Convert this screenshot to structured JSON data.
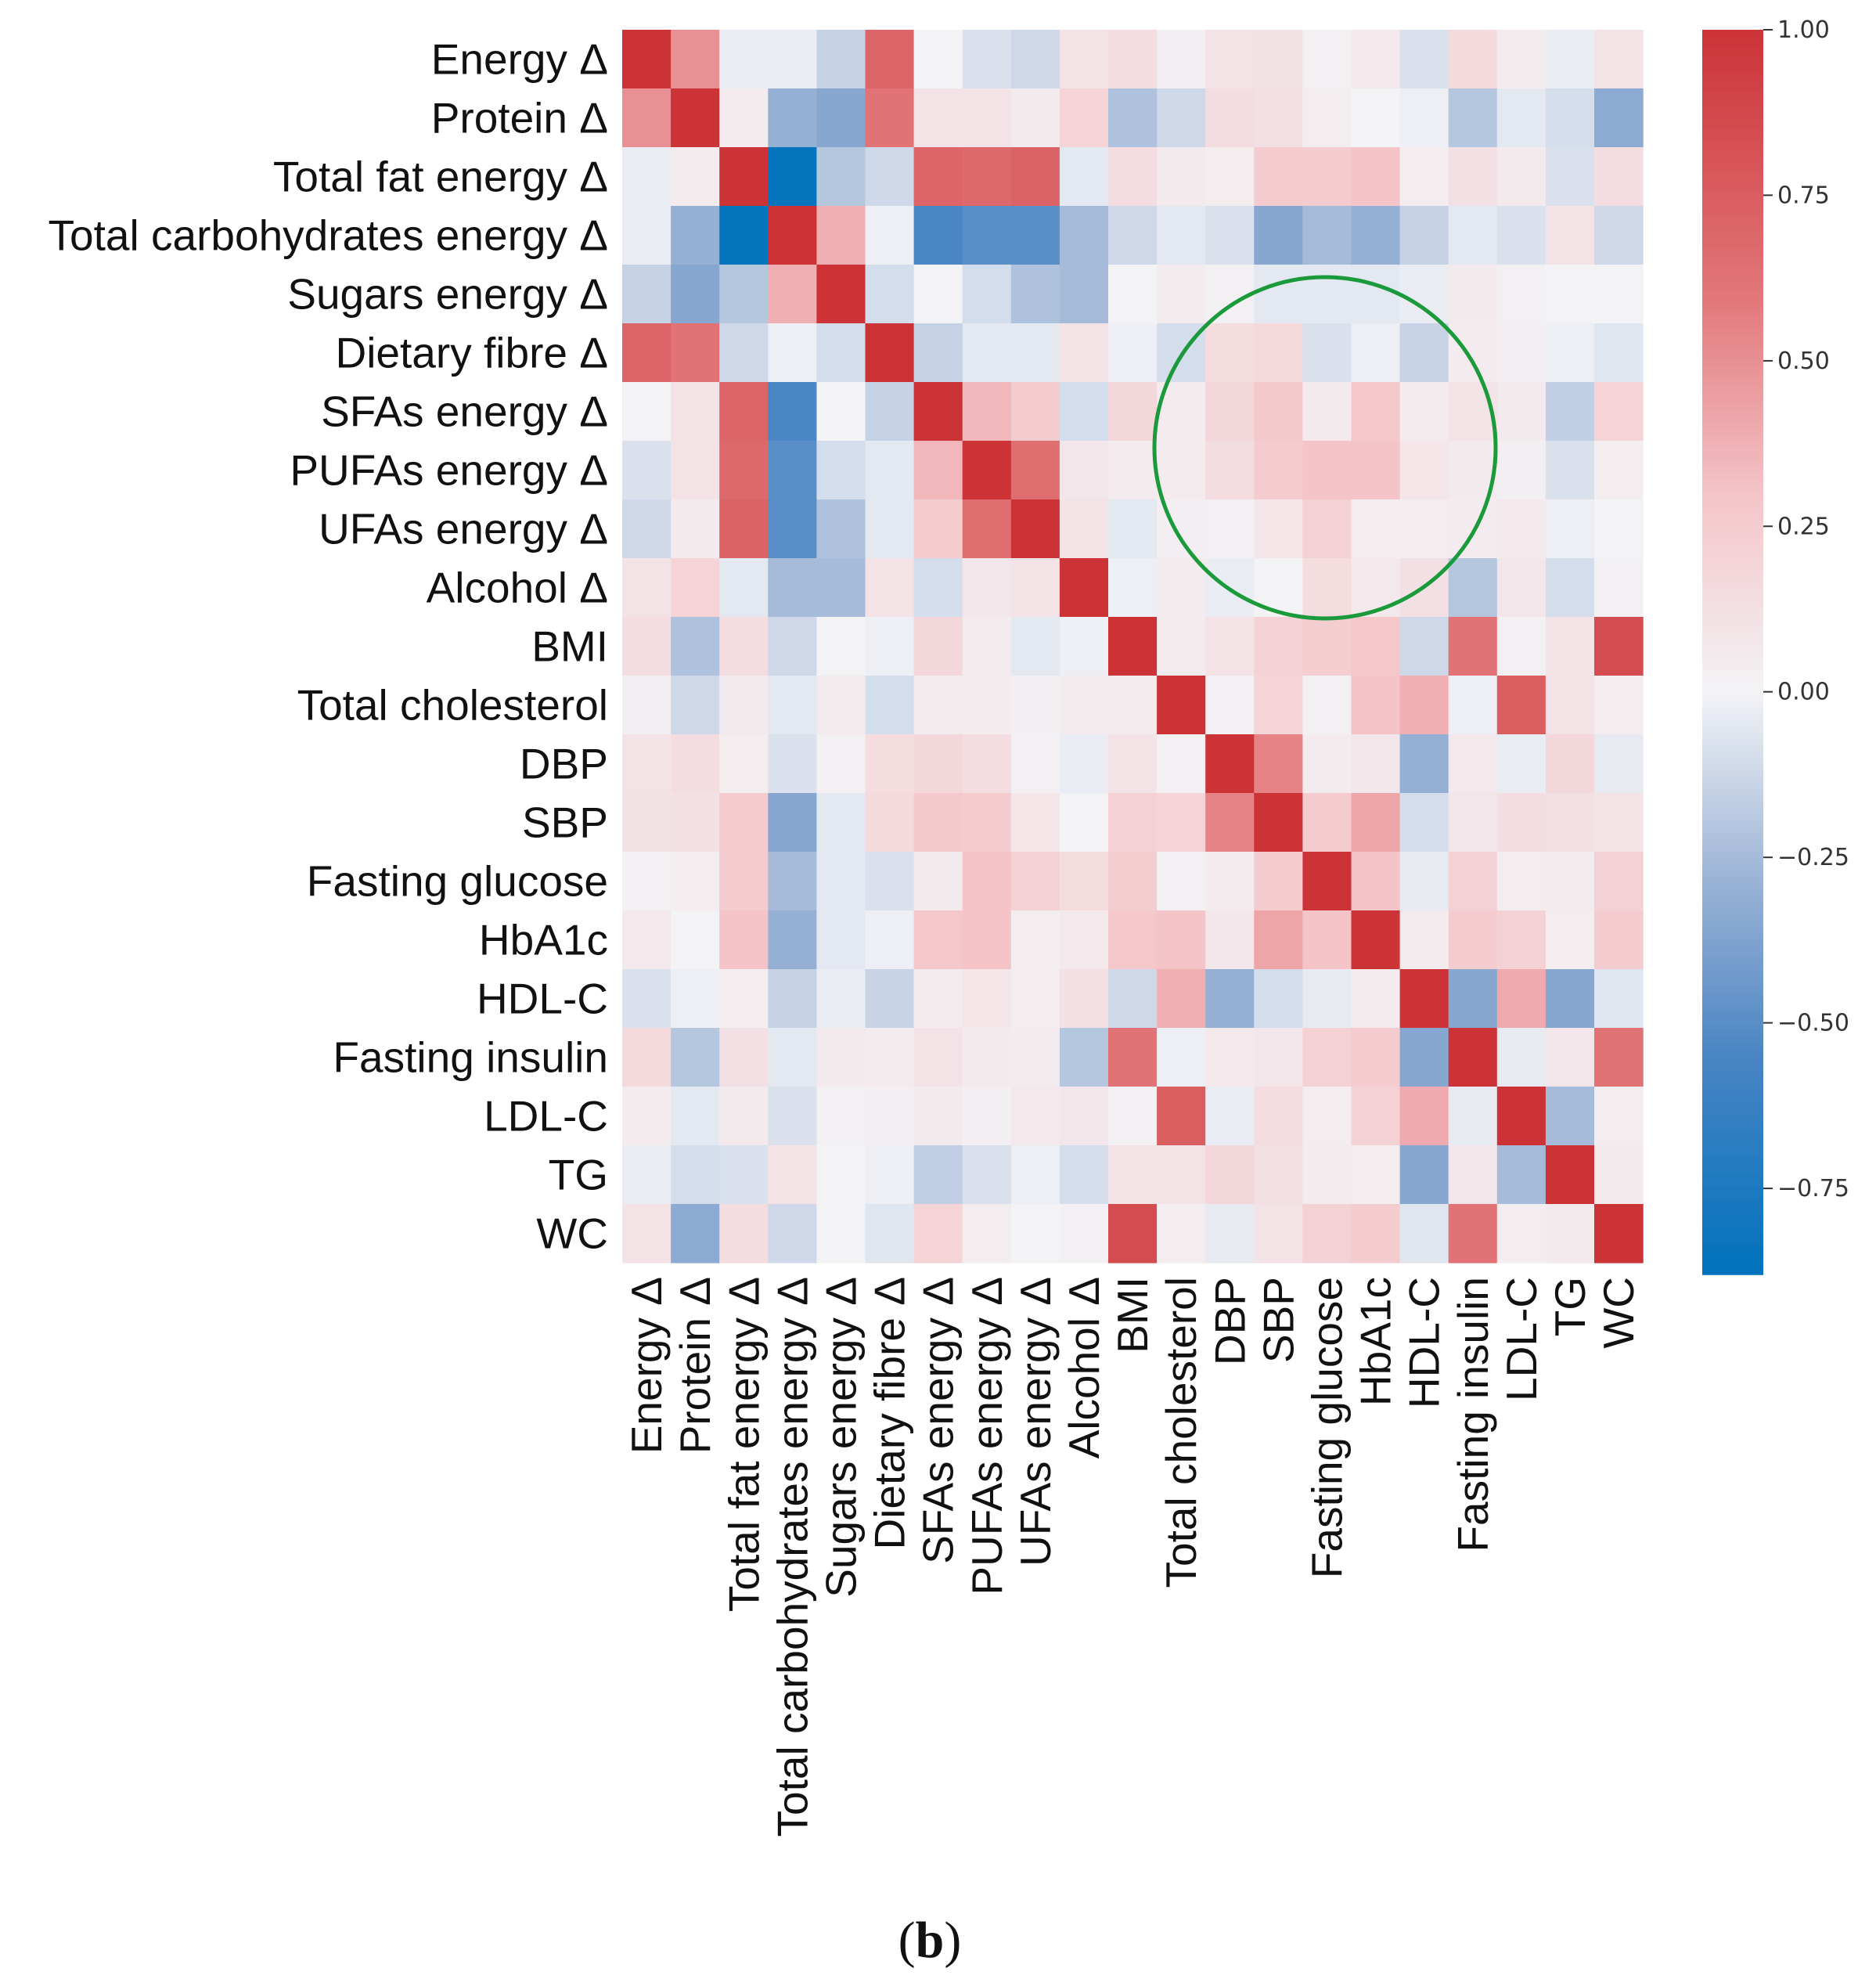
{
  "chart_data": {
    "type": "heatmap",
    "title": "",
    "caption": {
      "open": "(",
      "letter": "b",
      "close": ")"
    },
    "labels": [
      "Energy Δ",
      "Protein Δ",
      "Total fat energy Δ",
      "Total carbohydrates energy Δ",
      "Sugars energy Δ",
      "Dietary fibre Δ",
      "SFAs energy Δ",
      "PUFAs energy Δ",
      "UFAs energy Δ",
      "Alcohol Δ",
      "BMI",
      "Total cholesterol",
      "DBP",
      "SBP",
      "Fasting glucose",
      "HbA1c",
      "HDL-C",
      "Fasting insulin",
      "LDL-C",
      "TG",
      "WC"
    ],
    "matrix": [
      [
        1.0,
        0.5,
        -0.03,
        -0.03,
        -0.15,
        0.7,
        0.0,
        -0.08,
        -0.12,
        0.1,
        0.14,
        0.03,
        0.1,
        0.11,
        0.02,
        0.07,
        -0.08,
        0.16,
        0.05,
        -0.03,
        0.1
      ],
      [
        0.5,
        1.0,
        0.05,
        -0.3,
        -0.35,
        0.62,
        0.1,
        0.1,
        0.06,
        0.2,
        -0.22,
        -0.12,
        0.14,
        0.12,
        0.04,
        0.0,
        -0.02,
        -0.2,
        -0.05,
        -0.1,
        -0.33
      ],
      [
        -0.03,
        0.05,
        1.0,
        -0.85,
        -0.2,
        -0.12,
        0.7,
        0.68,
        0.72,
        -0.05,
        0.14,
        0.06,
        0.04,
        0.25,
        0.25,
        0.3,
        0.04,
        0.12,
        0.06,
        -0.08,
        0.14
      ],
      [
        -0.03,
        -0.3,
        -0.85,
        1.0,
        0.38,
        -0.02,
        -0.55,
        -0.5,
        -0.5,
        -0.25,
        -0.12,
        -0.05,
        -0.08,
        -0.35,
        -0.25,
        -0.3,
        -0.15,
        -0.05,
        -0.08,
        0.1,
        -0.12
      ],
      [
        -0.15,
        -0.35,
        -0.2,
        0.38,
        1.0,
        -0.1,
        0.0,
        -0.1,
        -0.22,
        -0.25,
        0.0,
        0.05,
        0.02,
        -0.05,
        -0.05,
        -0.05,
        -0.03,
        0.06,
        0.02,
        0.0,
        0.0
      ],
      [
        0.7,
        0.62,
        -0.12,
        -0.02,
        -0.1,
        1.0,
        -0.15,
        -0.05,
        -0.05,
        0.1,
        -0.02,
        -0.1,
        0.15,
        0.16,
        -0.08,
        -0.02,
        -0.14,
        0.05,
        0.03,
        -0.02,
        -0.06
      ],
      [
        0.0,
        0.1,
        0.7,
        -0.55,
        0.0,
        -0.15,
        1.0,
        0.35,
        0.25,
        -0.1,
        0.18,
        0.05,
        0.18,
        0.27,
        0.06,
        0.28,
        0.05,
        0.1,
        0.06,
        -0.16,
        0.2
      ],
      [
        -0.08,
        0.1,
        0.68,
        -0.5,
        -0.1,
        -0.05,
        0.35,
        1.0,
        0.65,
        0.08,
        0.05,
        0.05,
        0.14,
        0.25,
        0.3,
        0.3,
        0.09,
        0.06,
        0.03,
        -0.08,
        0.04
      ],
      [
        -0.12,
        0.06,
        0.72,
        -0.5,
        -0.22,
        -0.05,
        0.25,
        0.65,
        1.0,
        0.1,
        -0.05,
        0.03,
        0.02,
        0.09,
        0.22,
        0.04,
        0.04,
        0.05,
        0.07,
        -0.02,
        0.0
      ],
      [
        0.1,
        0.2,
        -0.05,
        -0.25,
        -0.25,
        0.1,
        -0.1,
        0.08,
        0.1,
        1.0,
        -0.02,
        0.05,
        -0.03,
        0.0,
        0.15,
        0.07,
        0.12,
        -0.2,
        0.08,
        -0.1,
        0.02
      ],
      [
        0.14,
        -0.22,
        0.14,
        -0.12,
        0.0,
        -0.02,
        0.18,
        0.05,
        -0.05,
        -0.02,
        1.0,
        0.05,
        0.1,
        0.22,
        0.24,
        0.28,
        -0.12,
        0.62,
        0.02,
        0.1,
        0.85
      ],
      [
        0.03,
        -0.12,
        0.06,
        -0.05,
        0.05,
        -0.1,
        0.05,
        0.05,
        0.03,
        0.05,
        0.05,
        1.0,
        0.02,
        0.2,
        0.02,
        0.3,
        0.38,
        -0.02,
        0.75,
        0.1,
        0.04
      ],
      [
        0.1,
        0.14,
        0.04,
        -0.08,
        0.02,
        0.15,
        0.18,
        0.14,
        0.02,
        -0.03,
        0.1,
        0.02,
        1.0,
        0.55,
        0.05,
        0.08,
        -0.3,
        0.07,
        -0.03,
        0.18,
        -0.04
      ],
      [
        0.11,
        0.12,
        0.25,
        -0.35,
        -0.05,
        0.16,
        0.27,
        0.25,
        0.09,
        0.0,
        0.22,
        0.2,
        0.55,
        1.0,
        0.25,
        0.42,
        -0.1,
        0.08,
        0.14,
        0.12,
        0.1
      ],
      [
        0.02,
        0.04,
        0.25,
        -0.25,
        -0.05,
        -0.08,
        0.06,
        0.3,
        0.22,
        0.15,
        0.24,
        0.02,
        0.05,
        0.25,
        1.0,
        0.3,
        -0.04,
        0.22,
        0.04,
        0.05,
        0.22
      ],
      [
        0.07,
        0.0,
        0.3,
        -0.3,
        -0.05,
        -0.02,
        0.28,
        0.3,
        0.04,
        0.07,
        0.28,
        0.3,
        0.08,
        0.42,
        0.3,
        1.0,
        0.05,
        0.25,
        0.22,
        0.04,
        0.25
      ],
      [
        -0.08,
        -0.02,
        0.04,
        -0.15,
        -0.03,
        -0.14,
        0.05,
        0.09,
        0.04,
        0.12,
        -0.12,
        0.38,
        -0.3,
        -0.1,
        -0.04,
        0.05,
        1.0,
        -0.35,
        0.4,
        -0.35,
        -0.06
      ],
      [
        0.16,
        -0.2,
        0.12,
        -0.05,
        0.06,
        0.05,
        0.1,
        0.06,
        0.05,
        -0.2,
        0.62,
        -0.02,
        0.07,
        0.08,
        0.22,
        0.25,
        -0.35,
        1.0,
        -0.04,
        0.08,
        0.62
      ],
      [
        0.05,
        -0.05,
        0.06,
        -0.08,
        0.02,
        0.03,
        0.06,
        0.03,
        0.07,
        0.08,
        0.02,
        0.75,
        -0.03,
        0.14,
        0.04,
        0.22,
        0.4,
        -0.04,
        1.0,
        -0.25,
        0.04
      ],
      [
        -0.03,
        -0.1,
        -0.08,
        0.1,
        0.0,
        -0.02,
        -0.16,
        -0.08,
        -0.02,
        -0.1,
        0.1,
        0.1,
        0.18,
        0.12,
        0.05,
        0.04,
        -0.35,
        0.08,
        -0.25,
        1.0,
        0.06
      ],
      [
        0.1,
        -0.33,
        0.14,
        -0.12,
        0.0,
        -0.06,
        0.2,
        0.04,
        0.0,
        0.02,
        0.85,
        0.04,
        -0.04,
        0.1,
        0.22,
        0.25,
        -0.06,
        0.62,
        0.04,
        0.06,
        1.0
      ]
    ],
    "colorbar": {
      "vmin": -0.88,
      "vmax": 1.0,
      "ticks": [
        1.0,
        0.75,
        0.5,
        0.25,
        0.0,
        -0.25,
        -0.5,
        -0.75
      ],
      "tick_labels": [
        "1.00",
        "0.75",
        "0.50",
        "0.25",
        "0.00",
        "−0.25",
        "−0.50",
        "−0.75"
      ]
    },
    "annotation": {
      "shape": "circle",
      "color": "#1a9a3a",
      "note": "green circle highlighting dietary-fat rows vs DBP–HDL-C columns"
    }
  }
}
